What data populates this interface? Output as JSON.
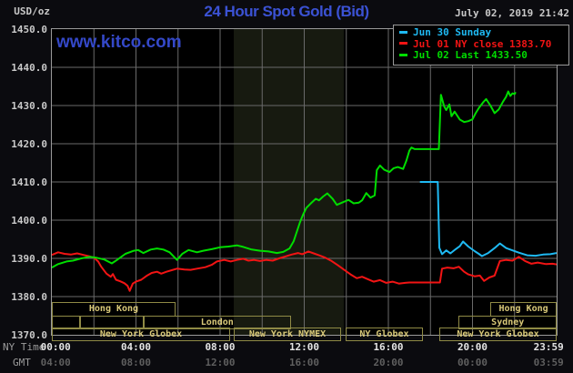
{
  "header": {
    "unit": "USD/oz",
    "title": "24 Hour Spot Gold (Bid)",
    "datetime": "July 02, 2019 21:42",
    "watermark": "www.kitco.com"
  },
  "colors": {
    "title_blue": "#3b52d4",
    "watermark_blue": "#3448c8",
    "sunday_cyan": "#1fb9f2",
    "jul01_red": "#f21414",
    "jul02_green": "#00dd00",
    "grid_gray": "#6a6a6a",
    "nymex_band": "#171a10",
    "session_khaki": "#d8c878",
    "ny_tick_color": "#e4e4e4",
    "gmt_tick_color": "#5f5f5f"
  },
  "legend": [
    {
      "label": "Jun 30 Sunday",
      "color": "#1fb9f2"
    },
    {
      "label": "Jul 01 NY close 1383.70",
      "color": "#f21414"
    },
    {
      "label": "Jul 02 Last 1433.50",
      "color": "#00dd00"
    }
  ],
  "axes": {
    "ny_time_label": "NY Time",
    "gmt_label": "GMT",
    "y_ticks": [
      "1450.0",
      "1440.0",
      "1430.0",
      "1420.0",
      "1410.0",
      "1400.0",
      "1390.0",
      "1380.0",
      "1370.0"
    ],
    "x_ticks": [
      {
        "h": 0.18,
        "ny": "00:00",
        "gmt": "04:00"
      },
      {
        "h": 4,
        "ny": "04:00",
        "gmt": "08:00"
      },
      {
        "h": 8,
        "ny": "08:00",
        "gmt": "12:00"
      },
      {
        "h": 12,
        "ny": "12:00",
        "gmt": "16:00"
      },
      {
        "h": 16,
        "ny": "16:00",
        "gmt": "20:00"
      },
      {
        "h": 20,
        "ny": "20:00",
        "gmt": "00:00"
      },
      {
        "h": 23.62,
        "ny": "23:59",
        "gmt": "03:59"
      }
    ]
  },
  "sessions": [
    {
      "row": 1,
      "label": "Hong Kong",
      "start": 0,
      "end": 5.88
    },
    {
      "row": 1,
      "label": "Hong Kong",
      "start": 20.85,
      "end": 24
    },
    {
      "row": 2,
      "label": "",
      "start": 0,
      "end": 1.35
    },
    {
      "row": 2,
      "label": "",
      "start": 1.35,
      "end": 4.35
    },
    {
      "row": 2,
      "label": "London",
      "start": 4.35,
      "end": 11.37
    },
    {
      "row": 2,
      "label": "Sydney",
      "start": 19.35,
      "end": 24
    },
    {
      "row": 3,
      "label": "New York Globex",
      "start": 0,
      "end": 8.48
    },
    {
      "row": 3,
      "label": "New York NYMEX",
      "start": 8.65,
      "end": 13.75
    },
    {
      "row": 3,
      "label": "NY Globex",
      "start": 13.97,
      "end": 17.64
    },
    {
      "row": 3,
      "label": "New York Globex",
      "start": 18.42,
      "end": 24
    }
  ],
  "chart_data": {
    "type": "line",
    "title": "24 Hour Spot Gold (Bid)",
    "xlabel": "NY Time (hours 00:00-23:59)",
    "ylabel": "USD/oz",
    "ylim": [
      1370,
      1450
    ],
    "xlim_hours": [
      0,
      24
    ],
    "grid": true,
    "y_gridline_step": 10,
    "x_gridline_step_hours": 2,
    "legend_position": "top-right",
    "nymex_shaded_band_hours": [
      8.65,
      13.88
    ],
    "series": [
      {
        "name": "Jun 30 Sunday",
        "color": "#1fb9f2",
        "points": [
          [
            17.5,
            1410
          ],
          [
            18.35,
            1410
          ],
          [
            18.42,
            1392.8
          ],
          [
            18.55,
            1391.1
          ],
          [
            18.75,
            1392.1
          ],
          [
            18.95,
            1391.3
          ],
          [
            19.2,
            1392.4
          ],
          [
            19.4,
            1393.2
          ],
          [
            19.55,
            1394.4
          ],
          [
            19.8,
            1393.1
          ],
          [
            20.1,
            1391.9
          ],
          [
            20.3,
            1391.2
          ],
          [
            20.45,
            1390.6
          ],
          [
            20.75,
            1391.4
          ],
          [
            21.1,
            1392.9
          ],
          [
            21.3,
            1393.9
          ],
          [
            21.6,
            1392.7
          ],
          [
            21.9,
            1392.1
          ],
          [
            22.2,
            1391.5
          ],
          [
            22.6,
            1390.8
          ],
          [
            23.0,
            1390.7
          ],
          [
            23.35,
            1391.0
          ],
          [
            23.7,
            1391.1
          ],
          [
            24.0,
            1391.4
          ]
        ]
      },
      {
        "name": "Jul 01 (NY close 1383.70)",
        "color": "#f21414",
        "points": [
          [
            0,
            1390.9
          ],
          [
            0.3,
            1391.6
          ],
          [
            0.6,
            1391.2
          ],
          [
            0.9,
            1391.0
          ],
          [
            1.2,
            1391.3
          ],
          [
            1.5,
            1390.9
          ],
          [
            1.8,
            1390.5
          ],
          [
            2.0,
            1390.2
          ],
          [
            2.2,
            1389.2
          ],
          [
            2.35,
            1387.8
          ],
          [
            2.6,
            1386.0
          ],
          [
            2.8,
            1385.2
          ],
          [
            2.9,
            1385.9
          ],
          [
            3.05,
            1384.4
          ],
          [
            3.25,
            1384.0
          ],
          [
            3.45,
            1383.5
          ],
          [
            3.6,
            1382.8
          ],
          [
            3.7,
            1381.5
          ],
          [
            3.85,
            1383.4
          ],
          [
            4.0,
            1383.9
          ],
          [
            4.25,
            1384.4
          ],
          [
            4.5,
            1385.4
          ],
          [
            4.75,
            1386.2
          ],
          [
            5.0,
            1386.5
          ],
          [
            5.2,
            1386.0
          ],
          [
            5.45,
            1386.5
          ],
          [
            5.7,
            1386.9
          ],
          [
            5.95,
            1387.3
          ],
          [
            6.3,
            1387.1
          ],
          [
            6.6,
            1387.0
          ],
          [
            6.9,
            1387.3
          ],
          [
            7.3,
            1387.7
          ],
          [
            7.6,
            1388.3
          ],
          [
            7.85,
            1389.2
          ],
          [
            8.2,
            1389.6
          ],
          [
            8.5,
            1389.2
          ],
          [
            8.8,
            1389.6
          ],
          [
            9.1,
            1389.9
          ],
          [
            9.35,
            1389.4
          ],
          [
            9.6,
            1389.6
          ],
          [
            9.9,
            1389.3
          ],
          [
            10.2,
            1389.6
          ],
          [
            10.5,
            1389.4
          ],
          [
            10.8,
            1390.0
          ],
          [
            11.1,
            1390.5
          ],
          [
            11.4,
            1391.0
          ],
          [
            11.7,
            1391.4
          ],
          [
            11.9,
            1391.1
          ],
          [
            12.2,
            1391.8
          ],
          [
            12.45,
            1391.3
          ],
          [
            12.7,
            1390.8
          ],
          [
            13.0,
            1390.2
          ],
          [
            13.3,
            1389.3
          ],
          [
            13.6,
            1388.2
          ],
          [
            13.9,
            1387.0
          ],
          [
            14.2,
            1385.8
          ],
          [
            14.5,
            1384.8
          ],
          [
            14.75,
            1385.2
          ],
          [
            15.0,
            1384.6
          ],
          [
            15.3,
            1383.9
          ],
          [
            15.6,
            1384.3
          ],
          [
            15.9,
            1383.6
          ],
          [
            16.2,
            1383.9
          ],
          [
            16.5,
            1383.4
          ],
          [
            16.8,
            1383.6
          ],
          [
            17.0,
            1383.7
          ],
          [
            18.45,
            1383.7
          ],
          [
            18.55,
            1387.3
          ],
          [
            18.8,
            1387.6
          ],
          [
            19.1,
            1387.4
          ],
          [
            19.35,
            1387.8
          ],
          [
            19.6,
            1386.5
          ],
          [
            19.8,
            1385.8
          ],
          [
            20.1,
            1385.3
          ],
          [
            20.35,
            1385.5
          ],
          [
            20.55,
            1384.1
          ],
          [
            20.8,
            1385.0
          ],
          [
            21.05,
            1385.5
          ],
          [
            21.3,
            1389.3
          ],
          [
            21.6,
            1389.6
          ],
          [
            21.9,
            1389.4
          ],
          [
            22.2,
            1390.4
          ],
          [
            22.5,
            1389.3
          ],
          [
            22.8,
            1388.6
          ],
          [
            23.1,
            1388.9
          ],
          [
            23.5,
            1388.5
          ],
          [
            23.8,
            1388.6
          ],
          [
            24.0,
            1388.4
          ]
        ]
      },
      {
        "name": "Jul 02 (Last 1433.50)",
        "color": "#00dd00",
        "points": [
          [
            0,
            1387.6
          ],
          [
            0.3,
            1388.5
          ],
          [
            0.7,
            1389.2
          ],
          [
            1.0,
            1389.4
          ],
          [
            1.4,
            1390.0
          ],
          [
            1.8,
            1390.4
          ],
          [
            2.1,
            1390.2
          ],
          [
            2.5,
            1389.7
          ],
          [
            2.85,
            1388.7
          ],
          [
            3.1,
            1389.6
          ],
          [
            3.5,
            1391.2
          ],
          [
            3.9,
            1392.0
          ],
          [
            4.1,
            1392.2
          ],
          [
            4.35,
            1391.4
          ],
          [
            4.7,
            1392.3
          ],
          [
            5.0,
            1392.6
          ],
          [
            5.3,
            1392.3
          ],
          [
            5.6,
            1391.6
          ],
          [
            5.95,
            1389.6
          ],
          [
            6.2,
            1391.2
          ],
          [
            6.5,
            1392.2
          ],
          [
            6.9,
            1391.6
          ],
          [
            7.2,
            1392.0
          ],
          [
            7.6,
            1392.4
          ],
          [
            8.0,
            1392.9
          ],
          [
            8.4,
            1393.1
          ],
          [
            8.8,
            1393.4
          ],
          [
            9.1,
            1393.0
          ],
          [
            9.5,
            1392.3
          ],
          [
            9.9,
            1392.0
          ],
          [
            10.3,
            1391.8
          ],
          [
            10.7,
            1391.4
          ],
          [
            11.0,
            1391.7
          ],
          [
            11.3,
            1392.6
          ],
          [
            11.5,
            1394.5
          ],
          [
            11.65,
            1397.0
          ],
          [
            11.8,
            1399.5
          ],
          [
            11.95,
            1401.5
          ],
          [
            12.1,
            1403.2
          ],
          [
            12.3,
            1404.3
          ],
          [
            12.55,
            1405.6
          ],
          [
            12.7,
            1405.2
          ],
          [
            12.9,
            1406.2
          ],
          [
            13.1,
            1407.0
          ],
          [
            13.35,
            1405.6
          ],
          [
            13.55,
            1404.0
          ],
          [
            13.8,
            1404.6
          ],
          [
            14.1,
            1405.3
          ],
          [
            14.35,
            1404.4
          ],
          [
            14.6,
            1404.6
          ],
          [
            14.75,
            1405.2
          ],
          [
            14.95,
            1407.1
          ],
          [
            15.15,
            1405.9
          ],
          [
            15.35,
            1406.5
          ],
          [
            15.45,
            1413.1
          ],
          [
            15.6,
            1414.3
          ],
          [
            15.8,
            1413.2
          ],
          [
            16.05,
            1412.6
          ],
          [
            16.25,
            1413.6
          ],
          [
            16.45,
            1413.9
          ],
          [
            16.7,
            1413.4
          ],
          [
            16.85,
            1415.5
          ],
          [
            17.0,
            1418.2
          ],
          [
            17.1,
            1419.0
          ],
          [
            17.25,
            1418.6
          ],
          [
            18.4,
            1418.6
          ],
          [
            18.5,
            1432.8
          ],
          [
            18.65,
            1429.8
          ],
          [
            18.75,
            1428.8
          ],
          [
            18.9,
            1430.3
          ],
          [
            19.0,
            1427.2
          ],
          [
            19.15,
            1428.4
          ],
          [
            19.4,
            1426.3
          ],
          [
            19.6,
            1425.7
          ],
          [
            19.8,
            1425.9
          ],
          [
            20.0,
            1426.4
          ],
          [
            20.15,
            1428.0
          ],
          [
            20.3,
            1429.3
          ],
          [
            20.5,
            1430.8
          ],
          [
            20.65,
            1431.7
          ],
          [
            20.85,
            1430.0
          ],
          [
            21.05,
            1428.0
          ],
          [
            21.25,
            1429.0
          ],
          [
            21.45,
            1431.0
          ],
          [
            21.6,
            1432.3
          ],
          [
            21.7,
            1433.7
          ],
          [
            21.8,
            1432.5
          ],
          [
            21.9,
            1433.2
          ],
          [
            22.0,
            1433.0
          ],
          [
            22.05,
            1433.5
          ]
        ]
      }
    ]
  }
}
